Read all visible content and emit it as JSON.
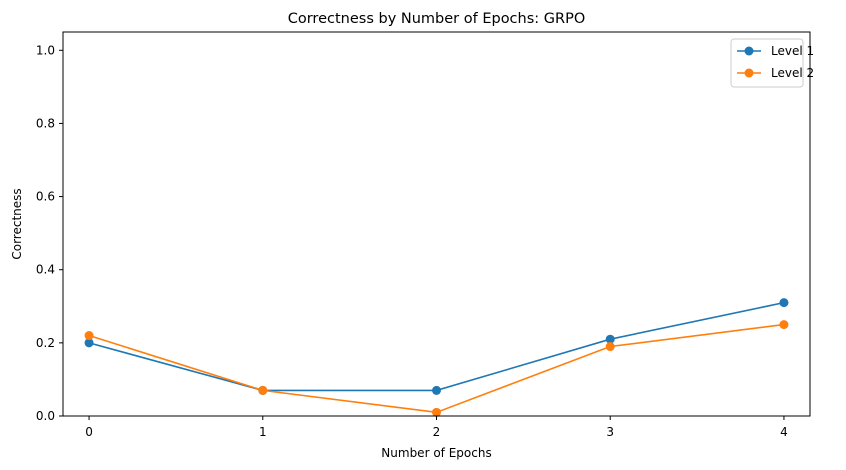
{
  "chart_data": {
    "type": "line",
    "title": "Correctness by Number of Epochs: GRPO",
    "xlabel": "Number of Epochs",
    "ylabel": "Correctness",
    "x": [
      0,
      1,
      2,
      3,
      4
    ],
    "xlim": [
      -0.15,
      4.15
    ],
    "ylim": [
      0,
      1.05
    ],
    "xticks": [
      0,
      1,
      2,
      3,
      4
    ],
    "yticks": [
      0.0,
      0.2,
      0.4,
      0.6,
      0.8,
      1.0
    ],
    "ytick_labels": [
      "0.0",
      "0.2",
      "0.4",
      "0.6",
      "0.8",
      "1.0"
    ],
    "grid": false,
    "legend_position": "top-right",
    "series": [
      {
        "name": "Level 1",
        "values": [
          0.2,
          0.07,
          0.07,
          0.21,
          0.31
        ],
        "color": "#1f77b4",
        "marker": "circle"
      },
      {
        "name": "Level 2",
        "values": [
          0.22,
          0.07,
          0.01,
          0.19,
          0.25
        ],
        "color": "#ff7f0e",
        "marker": "circle"
      }
    ]
  }
}
